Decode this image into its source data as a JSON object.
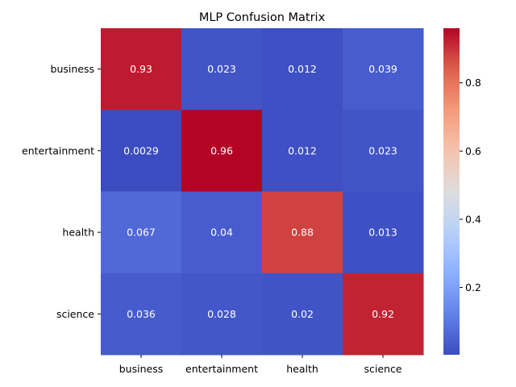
{
  "chart_data": {
    "type": "heatmap",
    "title": "MLP Confusion Matrix",
    "xlabel": "",
    "ylabel": "",
    "x_categories": [
      "business",
      "entertainment",
      "health",
      "science"
    ],
    "y_categories": [
      "business",
      "entertainment",
      "health",
      "science"
    ],
    "values": [
      [
        0.93,
        0.023,
        0.012,
        0.039
      ],
      [
        0.0029,
        0.96,
        0.012,
        0.023
      ],
      [
        0.067,
        0.04,
        0.88,
        0.013
      ],
      [
        0.036,
        0.028,
        0.02,
        0.92
      ]
    ],
    "value_labels": [
      [
        "0.93",
        "0.023",
        "0.012",
        "0.039"
      ],
      [
        "0.0029",
        "0.96",
        "0.012",
        "0.023"
      ],
      [
        "0.067",
        "0.04",
        "0.88",
        "0.013"
      ],
      [
        "0.036",
        "0.028",
        "0.02",
        "0.92"
      ]
    ],
    "colormap": "coolwarm",
    "colorbar": {
      "range": [
        0.0029,
        0.96
      ],
      "ticks": [
        0.2,
        0.4,
        0.6,
        0.8
      ],
      "tick_labels": [
        "0.2",
        "0.4",
        "0.6",
        "0.8"
      ]
    },
    "annotation_color": "#ffffff",
    "grid": false
  }
}
